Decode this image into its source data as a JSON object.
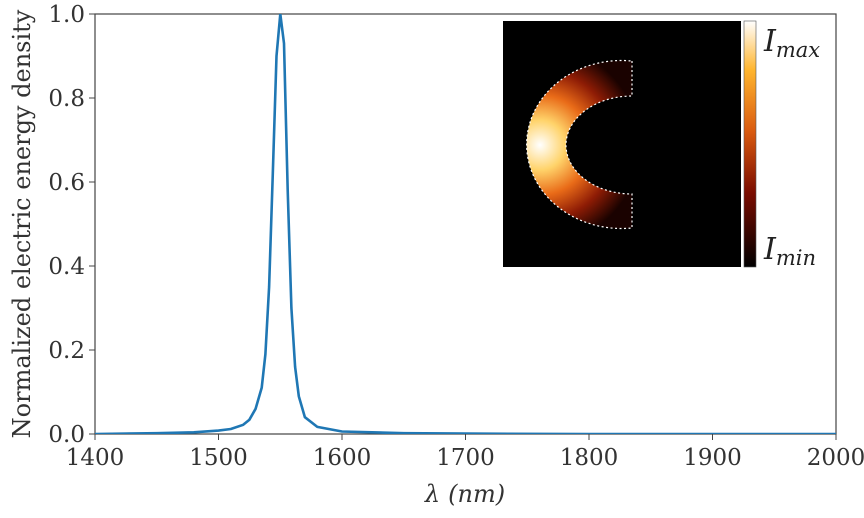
{
  "chart_data": {
    "type": "line",
    "title": "",
    "xlabel_symbol": "λ",
    "xlabel_unit": "(nm)",
    "ylabel": "Normalized electric energy density",
    "xlim": [
      1400,
      2000
    ],
    "ylim": [
      0.0,
      1.0
    ],
    "xticks": [
      "1400",
      "1500",
      "1600",
      "1700",
      "1800",
      "1900",
      "2000"
    ],
    "yticks": [
      "0.0",
      "0.2",
      "0.4",
      "0.6",
      "0.8",
      "1.0"
    ],
    "grid": false,
    "series": [
      {
        "color": "#1f77b4",
        "x": [
          1400,
          1450,
          1480,
          1500,
          1510,
          1520,
          1525,
          1530,
          1535,
          1538,
          1541,
          1544,
          1547,
          1550,
          1553,
          1556,
          1559,
          1562,
          1565,
          1570,
          1580,
          1600,
          1650,
          1700,
          1800,
          1900,
          2000
        ],
        "y": [
          0.0,
          0.002,
          0.004,
          0.008,
          0.012,
          0.022,
          0.034,
          0.06,
          0.11,
          0.19,
          0.35,
          0.62,
          0.9,
          1.0,
          0.93,
          0.58,
          0.3,
          0.16,
          0.09,
          0.04,
          0.017,
          0.006,
          0.002,
          0.001,
          0.0,
          0.0,
          0.0
        ]
      }
    ],
    "inset": {
      "colorbar_max_base": "I",
      "colorbar_max_sub": "max",
      "colorbar_min_base": "I",
      "colorbar_min_sub": "min",
      "colormap": "afmhot",
      "background": "#000000"
    }
  }
}
